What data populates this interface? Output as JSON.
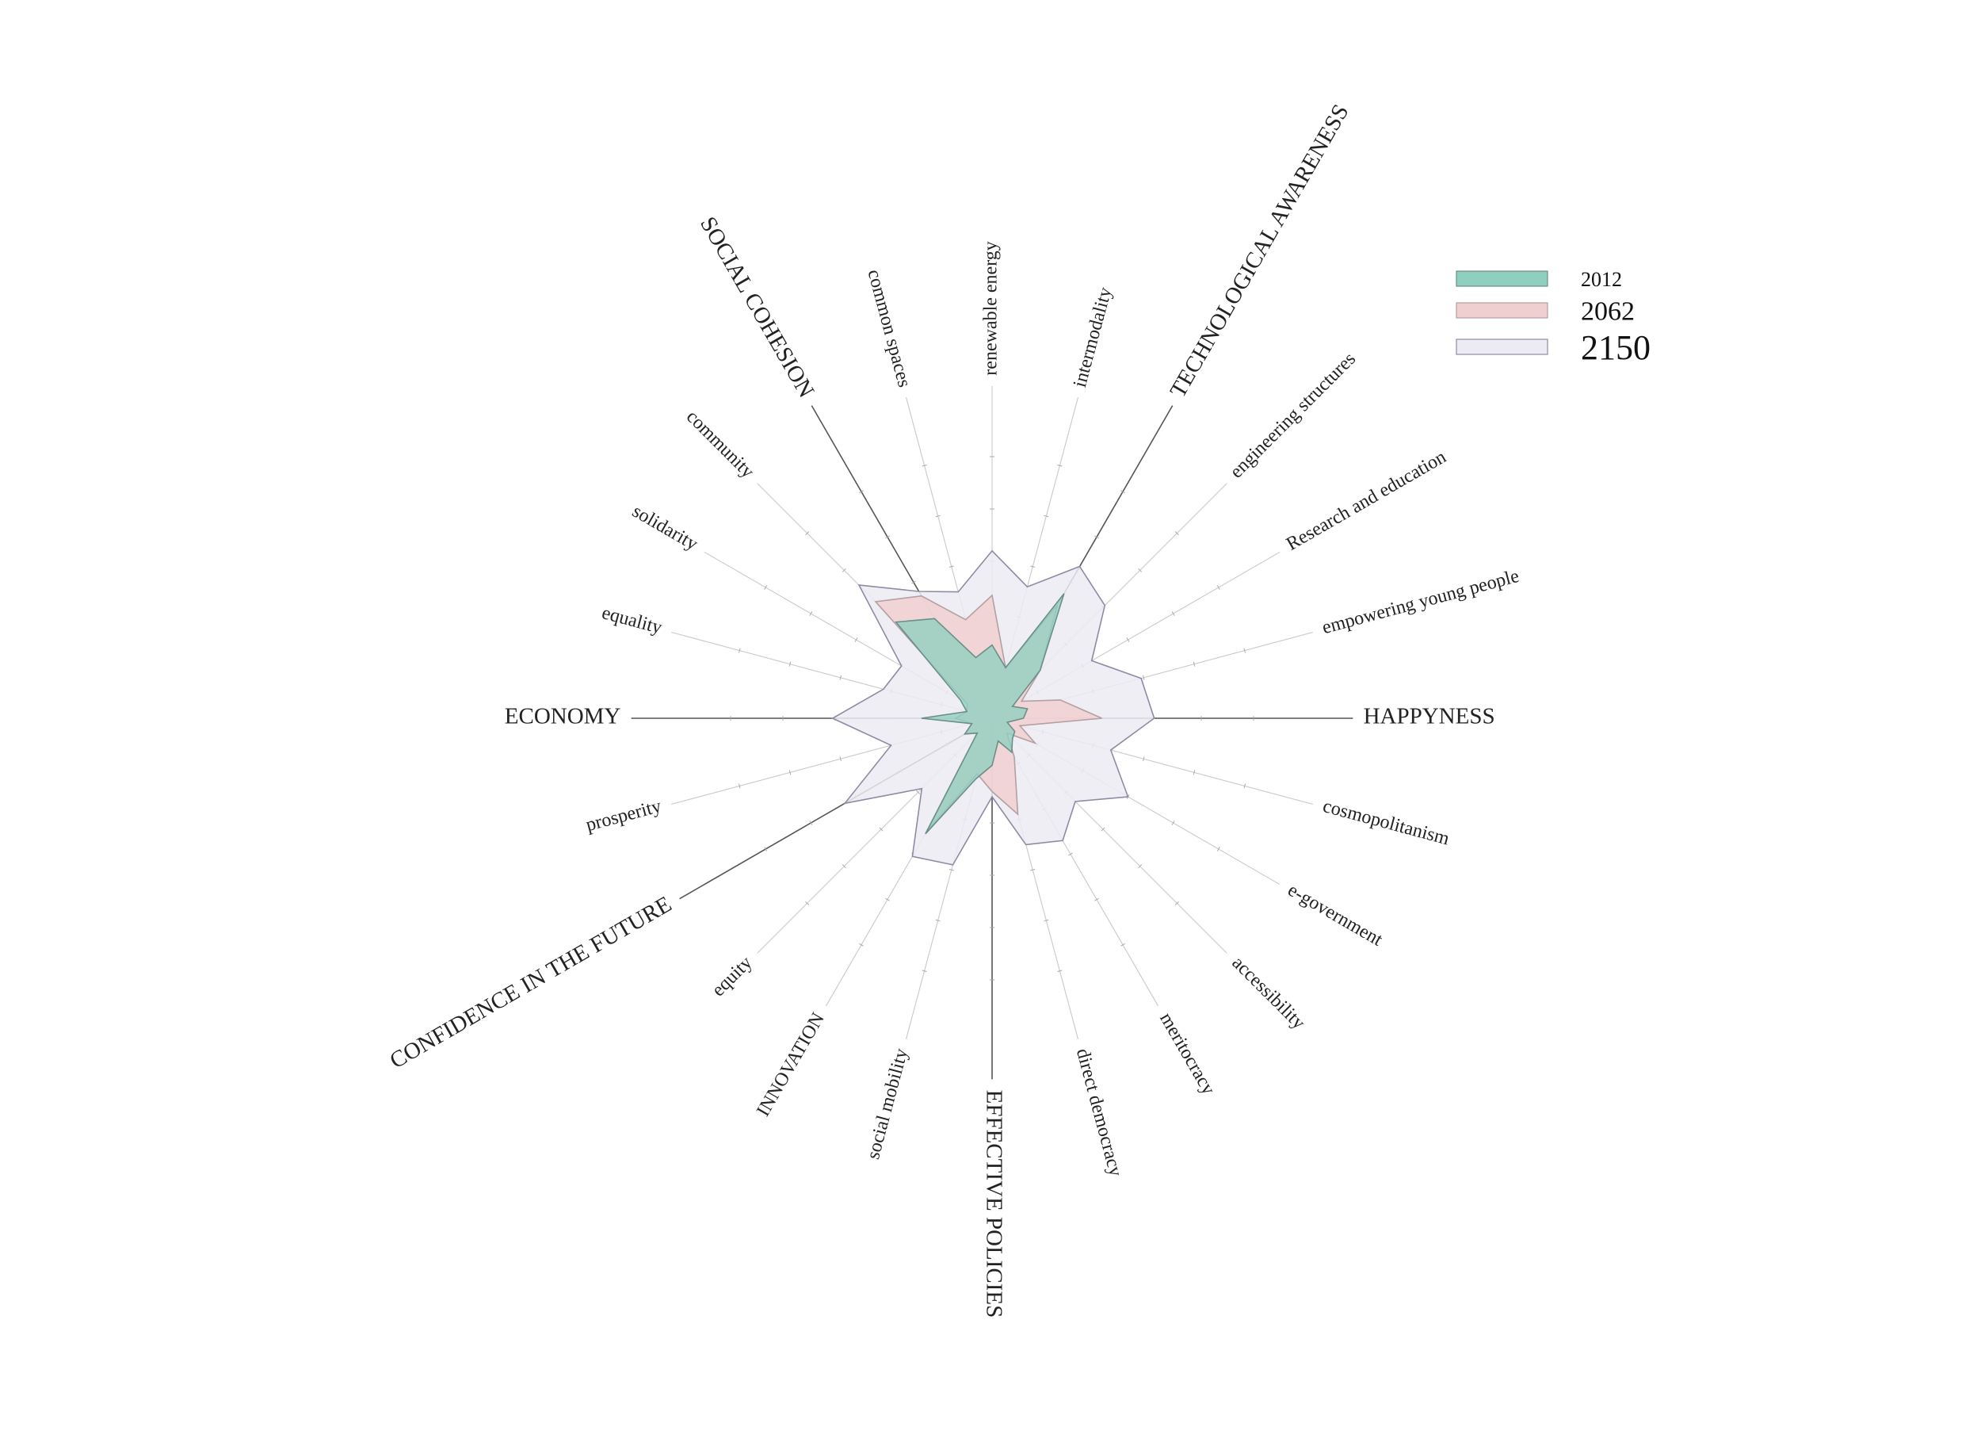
{
  "chart_data": {
    "type": "radar",
    "title": "",
    "range": [
      0,
      10
    ],
    "grid": true,
    "legend_position": "top-right",
    "categories": [
      "renewable energy",
      "intermodality",
      "TECHNOLOGICAL AWARENESS",
      "engineering structures",
      "Research and education",
      "empowering young people",
      "HAPPYNESS",
      "cosmopolitanism",
      "e-government",
      "accessibility",
      "meritocracy",
      "direct democracy",
      "EFFECTIVE POLICIES",
      "social mobility",
      "INNOVATION",
      "equity",
      "CONFIDENCE IN THE FUTURE",
      "prosperity",
      "ECONOMY",
      "equality",
      "solidarity",
      "community",
      "SOCIAL COHESION",
      "common spaces"
    ],
    "main_categories": [
      "TECHNOLOGICAL AWARENESS",
      "HAPPYNESS",
      "EFFECTIVE POLICIES",
      "CONFIDENCE IN THE FUTURE",
      "ECONOMY",
      "SOCIAL COHESION"
    ],
    "series": [
      {
        "name": "2150",
        "color": "#ecebf3",
        "stroke": "#8f8aa3",
        "values": [
          6.4,
          5.2,
          6.7,
          6.1,
          4.4,
          5.9,
          6.2,
          4.7,
          6.0,
          4.5,
          5.4,
          5.0,
          3.0,
          5.8,
          6.1,
          3.8,
          6.5,
          4.0,
          6.1,
          4.3,
          4.0,
          7.2,
          5.6,
          5.0
        ]
      },
      {
        "name": "2062",
        "color": "#f0cfd0",
        "stroke": "#b49fa2",
        "values": [
          4.7,
          2.0,
          5.0,
          2.6,
          1.3,
          2.7,
          4.2,
          1.1,
          1.9,
          0.8,
          1.7,
          3.8,
          2.8,
          2.2,
          5.0,
          0.8,
          1.2,
          0.8,
          1.4,
          1.0,
          1.1,
          6.3,
          5.4,
          3.9
        ]
      },
      {
        "name": "2012",
        "color": "#8fcfc0",
        "stroke": "#6a8f88",
        "values": [
          2.8,
          2.0,
          5.5,
          2.6,
          0.9,
          1.4,
          1.2,
          0.6,
          1.0,
          1.1,
          1.5,
          0.9,
          1.8,
          2.4,
          5.1,
          0.8,
          1.2,
          0.8,
          2.7,
          1.0,
          1.4,
          5.2,
          4.4,
          2.4
        ]
      }
    ]
  }
}
